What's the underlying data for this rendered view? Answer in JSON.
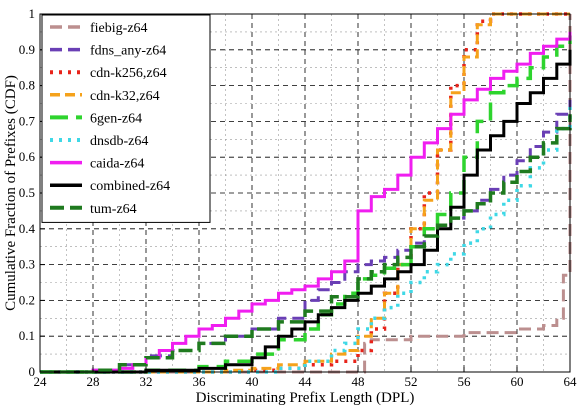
{
  "chart_data": {
    "type": "line",
    "title": "",
    "xlabel": "Discriminating Prefix Length (DPL)",
    "ylabel": "Cumulative Fraction of Prefixes (CDF)",
    "xlim": [
      24,
      64
    ],
    "ylim": [
      0,
      1
    ],
    "xticks": [
      24,
      28,
      32,
      36,
      40,
      44,
      48,
      52,
      56,
      60,
      64
    ],
    "yticks": [
      0,
      0.1,
      0.2,
      0.3,
      0.4,
      0.5,
      0.6,
      0.7,
      0.8,
      0.9,
      1
    ],
    "grid": true,
    "legend_position": "top-left",
    "series": [
      {
        "name": "fiebig-z64",
        "color": "#bc8f8f",
        "dash": "12,6",
        "width": 3,
        "x": [
          24,
          48,
          48.5,
          49,
          52,
          56,
          60,
          62,
          63,
          63.5,
          64
        ],
        "y": [
          0,
          0,
          0.08,
          0.09,
          0.1,
          0.11,
          0.12,
          0.13,
          0.15,
          0.27,
          1.0
        ]
      },
      {
        "name": "fdns_any-z64",
        "color": "#6a3fb5",
        "dash": "12,6",
        "width": 3,
        "x": [
          24,
          28,
          30,
          32,
          34,
          36,
          38,
          40,
          42,
          44,
          45,
          46,
          47,
          48,
          49,
          50,
          51,
          52,
          53,
          54,
          55,
          56,
          57,
          58,
          59,
          60,
          61,
          62,
          63,
          64
        ],
        "y": [
          0,
          0.005,
          0.02,
          0.045,
          0.06,
          0.08,
          0.1,
          0.12,
          0.15,
          0.2,
          0.23,
          0.25,
          0.28,
          0.3,
          0.31,
          0.32,
          0.34,
          0.36,
          0.38,
          0.41,
          0.43,
          0.45,
          0.48,
          0.51,
          0.55,
          0.59,
          0.63,
          0.67,
          0.72,
          0.76
        ]
      },
      {
        "name": "cdn-k256,z64",
        "color": "#e8231a",
        "dash": "3,6",
        "width": 3.5,
        "x": [
          24,
          38,
          40,
          42,
          44,
          46,
          48,
          49,
          50,
          51,
          52,
          53,
          54,
          55,
          56,
          57,
          58,
          64
        ],
        "y": [
          0,
          0,
          0.005,
          0.01,
          0.02,
          0.03,
          0.06,
          0.12,
          0.22,
          0.3,
          0.4,
          0.5,
          0.62,
          0.8,
          0.9,
          0.98,
          1.0,
          1.0
        ]
      },
      {
        "name": "cdn-k32,z64",
        "color": "#f5a21b",
        "dash": "10,5",
        "width": 3,
        "x": [
          24,
          36,
          38,
          40,
          42,
          44,
          46,
          47,
          48,
          49,
          50,
          51,
          52,
          53,
          54,
          55,
          56,
          57,
          58,
          64
        ],
        "y": [
          0,
          0,
          0.005,
          0.01,
          0.02,
          0.03,
          0.05,
          0.06,
          0.1,
          0.15,
          0.22,
          0.3,
          0.4,
          0.48,
          0.62,
          0.78,
          0.88,
          0.97,
          1.0,
          1.0
        ]
      },
      {
        "name": "6gen-z64",
        "color": "#2ed42e",
        "dash": "18,8",
        "width": 3.5,
        "x": [
          24,
          32,
          36,
          38,
          40,
          42,
          44,
          45,
          46,
          47,
          48,
          49,
          50,
          51,
          52,
          53,
          54,
          55,
          56,
          57,
          58,
          59,
          60,
          61,
          62,
          63,
          64
        ],
        "y": [
          0,
          0.005,
          0.015,
          0.03,
          0.05,
          0.09,
          0.12,
          0.16,
          0.19,
          0.22,
          0.26,
          0.27,
          0.29,
          0.3,
          0.35,
          0.4,
          0.44,
          0.5,
          0.6,
          0.7,
          0.78,
          0.8,
          0.82,
          0.85,
          0.88,
          0.91,
          0.94
        ]
      },
      {
        "name": "dnsdb-z64",
        "color": "#3fd8e6",
        "dash": "3,6",
        "width": 3.5,
        "x": [
          24,
          40,
          42,
          44,
          46,
          47,
          48,
          49,
          50,
          51,
          52,
          53,
          54,
          55,
          56,
          57,
          58,
          59,
          60,
          61,
          62,
          63,
          64
        ],
        "y": [
          0,
          0,
          0.01,
          0.03,
          0.06,
          0.08,
          0.12,
          0.15,
          0.18,
          0.22,
          0.25,
          0.28,
          0.3,
          0.33,
          0.36,
          0.4,
          0.44,
          0.48,
          0.52,
          0.57,
          0.62,
          0.68,
          0.75
        ]
      },
      {
        "name": "caida-z64",
        "color": "#f01ef0",
        "dash": "",
        "width": 3,
        "x": [
          24,
          28,
          30,
          31,
          32,
          33,
          34,
          35,
          36,
          37,
          38,
          39,
          40,
          41,
          42,
          43,
          44,
          45,
          46,
          47,
          48,
          49,
          50,
          51,
          52,
          53,
          54,
          55,
          56,
          57,
          58,
          59,
          60,
          61,
          62,
          63,
          64
        ],
        "y": [
          0,
          0.005,
          0.01,
          0.02,
          0.04,
          0.06,
          0.08,
          0.1,
          0.12,
          0.13,
          0.15,
          0.17,
          0.19,
          0.2,
          0.22,
          0.23,
          0.24,
          0.26,
          0.28,
          0.31,
          0.45,
          0.49,
          0.51,
          0.55,
          0.6,
          0.64,
          0.68,
          0.72,
          0.76,
          0.79,
          0.82,
          0.84,
          0.86,
          0.89,
          0.91,
          0.93,
          0.95
        ]
      },
      {
        "name": "combined-z64",
        "color": "#000000",
        "dash": "",
        "width": 3,
        "x": [
          24,
          32,
          36,
          38,
          40,
          41,
          42,
          43,
          44,
          45,
          46,
          47,
          48,
          49,
          50,
          51,
          52,
          53,
          54,
          55,
          56,
          57,
          58,
          59,
          60,
          61,
          62,
          63,
          64
        ],
        "y": [
          0,
          0.005,
          0.01,
          0.02,
          0.04,
          0.07,
          0.1,
          0.12,
          0.14,
          0.16,
          0.18,
          0.2,
          0.22,
          0.24,
          0.26,
          0.28,
          0.3,
          0.34,
          0.4,
          0.46,
          0.55,
          0.62,
          0.66,
          0.7,
          0.75,
          0.78,
          0.82,
          0.86,
          0.9
        ]
      },
      {
        "name": "tum-z64",
        "color": "#1f7a1f",
        "dash": "14,6",
        "width": 3.5,
        "x": [
          24,
          28,
          30,
          32,
          34,
          36,
          38,
          40,
          42,
          44,
          46,
          48,
          49,
          50,
          51,
          52,
          53,
          54,
          55,
          56,
          57,
          58,
          59,
          60,
          61,
          62,
          63,
          64
        ],
        "y": [
          0,
          0.005,
          0.02,
          0.04,
          0.06,
          0.08,
          0.1,
          0.12,
          0.14,
          0.17,
          0.21,
          0.26,
          0.28,
          0.3,
          0.32,
          0.35,
          0.38,
          0.41,
          0.43,
          0.45,
          0.47,
          0.5,
          0.53,
          0.56,
          0.6,
          0.64,
          0.68,
          0.72
        ]
      }
    ]
  }
}
